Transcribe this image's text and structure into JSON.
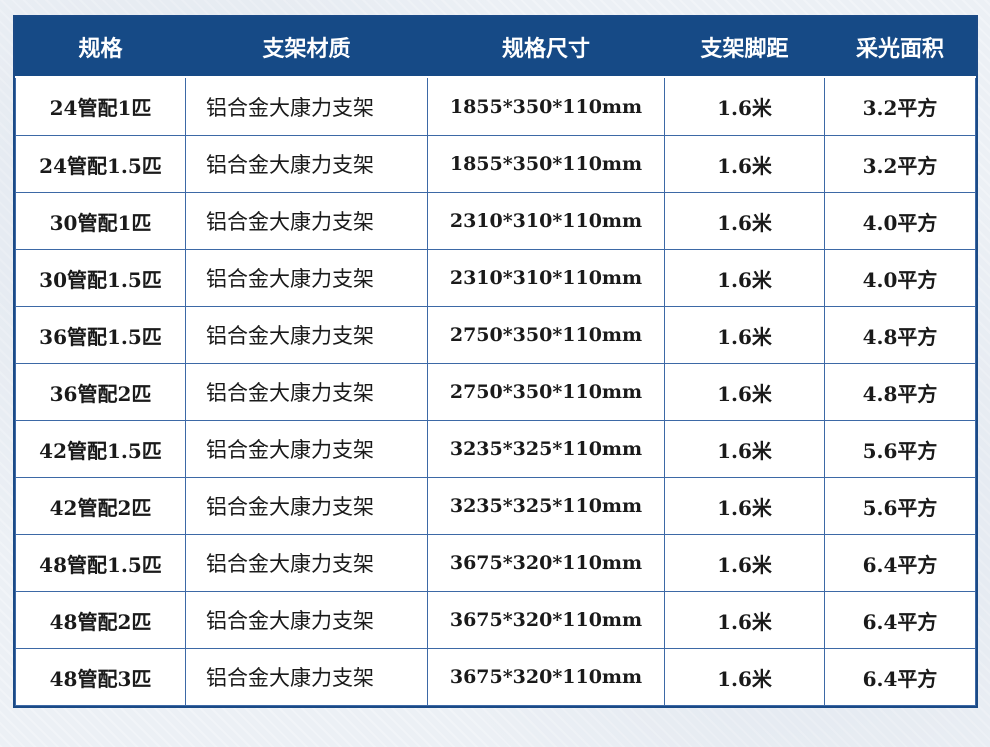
{
  "table": {
    "headers": [
      "规格",
      "支架材质",
      "规格尺寸",
      "支架脚距",
      "采光面积"
    ],
    "rows": [
      [
        "24管配1匹",
        "铝合金大康力支架",
        "1855*350*110mm",
        "1.6米",
        "3.2平方"
      ],
      [
        "24管配1.5匹",
        "铝合金大康力支架",
        "1855*350*110mm",
        "1.6米",
        "3.2平方"
      ],
      [
        "30管配1匹",
        "铝合金大康力支架",
        "2310*310*110mm",
        "1.6米",
        "4.0平方"
      ],
      [
        "30管配1.5匹",
        "铝合金大康力支架",
        "2310*310*110mm",
        "1.6米",
        "4.0平方"
      ],
      [
        "36管配1.5匹",
        "铝合金大康力支架",
        "2750*350*110mm",
        "1.6米",
        "4.8平方"
      ],
      [
        "36管配2匹",
        "铝合金大康力支架",
        "2750*350*110mm",
        "1.6米",
        "4.8平方"
      ],
      [
        "42管配1.5匹",
        "铝合金大康力支架",
        "3235*325*110mm",
        "1.6米",
        "5.6平方"
      ],
      [
        "42管配2匹",
        "铝合金大康力支架",
        "3235*325*110mm",
        "1.6米",
        "5.6平方"
      ],
      [
        "48管配1.5匹",
        "铝合金大康力支架",
        "3675*320*110mm",
        "1.6米",
        "6.4平方"
      ],
      [
        "48管配2匹",
        "铝合金大康力支架",
        "3675*320*110mm",
        "1.6米",
        "6.4平方"
      ],
      [
        "48管配3匹",
        "铝合金大康力支架",
        "3675*320*110mm",
        "1.6米",
        "6.4平方"
      ]
    ]
  },
  "colors": {
    "header_bg": "#164a86",
    "border": "#3d69a6",
    "header_text": "#ffffff",
    "body_text": "#1a1a1a"
  }
}
